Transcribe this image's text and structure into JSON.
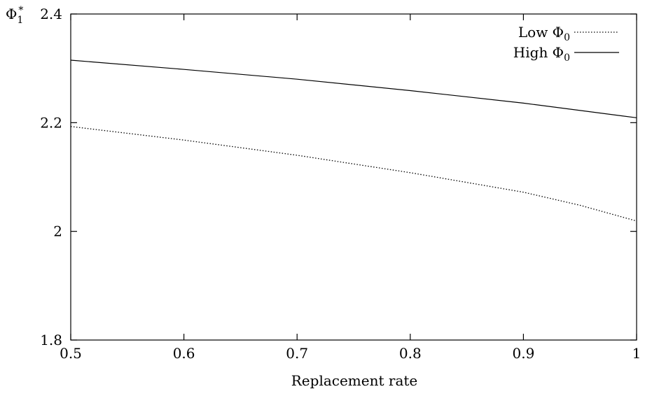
{
  "chart_data": {
    "type": "line",
    "title": "",
    "xlabel": "Replacement rate",
    "ylabel": "Φ₁*",
    "ylabel_main": "Φ",
    "ylabel_sub": "1",
    "ylabel_sup": "*",
    "xlim": [
      0.5,
      1.0
    ],
    "ylim": [
      1.8,
      2.4
    ],
    "x_ticks": [
      0.5,
      0.6,
      0.7,
      0.8,
      0.9,
      1.0
    ],
    "x_tick_labels": [
      "0.5",
      "0.6",
      "0.7",
      "0.8",
      "0.9",
      "1"
    ],
    "y_ticks": [
      1.8,
      2.0,
      2.2,
      2.4
    ],
    "y_tick_labels": [
      "1.8",
      "2",
      "2.2",
      "2.4"
    ],
    "grid": false,
    "legend_position": "top-right",
    "series": [
      {
        "name": "Low Φ₀",
        "name_main": "Low Φ",
        "name_sub": "0",
        "style": "dotted",
        "color": "#000000",
        "x": [
          0.5,
          0.6,
          0.7,
          0.8,
          0.9,
          0.95,
          1.0
        ],
        "y": [
          2.193,
          2.168,
          2.14,
          2.108,
          2.072,
          2.048,
          2.019
        ]
      },
      {
        "name": "High Φ₀",
        "name_main": "High Φ",
        "name_sub": "0",
        "style": "solid",
        "color": "#000000",
        "x": [
          0.5,
          0.6,
          0.7,
          0.8,
          0.9,
          1.0
        ],
        "y": [
          2.315,
          2.298,
          2.28,
          2.259,
          2.236,
          2.209
        ]
      }
    ]
  }
}
